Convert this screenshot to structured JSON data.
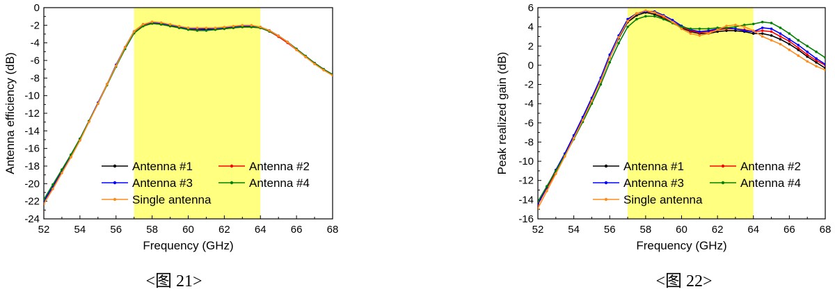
{
  "chart_data": [
    {
      "type": "line",
      "caption": "<图 21>",
      "xlabel": "Frequency (GHz)",
      "ylabel": "Antenna efficiency (dB)",
      "xlim": [
        52,
        68
      ],
      "ylim": [
        -24,
        0
      ],
      "xticks": [
        52,
        54,
        56,
        58,
        60,
        62,
        64,
        66,
        68
      ],
      "yticks": [
        0,
        -2,
        -4,
        -6,
        -8,
        -10,
        -12,
        -14,
        -16,
        -18,
        -20,
        -22,
        -24
      ],
      "highlight_band": {
        "from": 57,
        "to": 64,
        "color": "#ffff80"
      },
      "grid": false,
      "legend_position": "bottom-center",
      "series": [
        {
          "name": "Antenna #1",
          "color": "#000000",
          "x": [
            52,
            52.5,
            53,
            53.5,
            54,
            54.5,
            55,
            55.5,
            56,
            56.5,
            57,
            57.5,
            58,
            58.5,
            59,
            59.5,
            60,
            60.5,
            61,
            61.5,
            62,
            62.5,
            63,
            63.5,
            64,
            64.5,
            65,
            65.5,
            66,
            66.5,
            67,
            67.5,
            68
          ],
          "y": [
            -22.0,
            -20.4,
            -18.6,
            -16.9,
            -15.0,
            -12.9,
            -10.9,
            -8.7,
            -6.6,
            -4.5,
            -2.7,
            -1.9,
            -1.7,
            -1.8,
            -2.0,
            -2.2,
            -2.3,
            -2.4,
            -2.4,
            -2.4,
            -2.3,
            -2.2,
            -2.1,
            -2.1,
            -2.2,
            -2.6,
            -3.2,
            -3.9,
            -4.7,
            -5.5,
            -6.3,
            -7.0,
            -7.6
          ]
        },
        {
          "name": "Antenna #2",
          "color": "#ff0000",
          "x": [
            52,
            52.5,
            53,
            53.5,
            54,
            54.5,
            55,
            55.5,
            56,
            56.5,
            57,
            57.5,
            58,
            58.5,
            59,
            59.5,
            60,
            60.5,
            61,
            61.5,
            62,
            62.5,
            63,
            63.5,
            64,
            64.5,
            65,
            65.5,
            66,
            66.5,
            67,
            67.5,
            68
          ],
          "y": [
            -22.0,
            -20.4,
            -18.6,
            -16.9,
            -15.0,
            -12.9,
            -10.9,
            -8.7,
            -6.6,
            -4.5,
            -2.8,
            -2.0,
            -1.8,
            -1.9,
            -2.1,
            -2.3,
            -2.4,
            -2.5,
            -2.5,
            -2.5,
            -2.4,
            -2.3,
            -2.2,
            -2.2,
            -2.3,
            -2.7,
            -3.3,
            -4.0,
            -4.8,
            -5.6,
            -6.3,
            -7.0,
            -7.6
          ]
        },
        {
          "name": "Antenna #3",
          "color": "#0000ff",
          "x": [
            52,
            52.5,
            53,
            53.5,
            54,
            54.5,
            55,
            55.5,
            56,
            56.5,
            57,
            57.5,
            58,
            58.5,
            59,
            59.5,
            60,
            60.5,
            61,
            61.5,
            62,
            62.5,
            63,
            63.5,
            64,
            64.5,
            65,
            65.5,
            66,
            66.5,
            67,
            67.5,
            68
          ],
          "y": [
            -22.0,
            -20.3,
            -18.5,
            -16.8,
            -14.9,
            -12.9,
            -10.8,
            -8.7,
            -6.5,
            -4.5,
            -2.7,
            -1.9,
            -1.7,
            -1.8,
            -2.0,
            -2.2,
            -2.4,
            -2.4,
            -2.5,
            -2.4,
            -2.3,
            -2.2,
            -2.1,
            -2.1,
            -2.3,
            -2.6,
            -3.2,
            -3.9,
            -4.7,
            -5.5,
            -6.3,
            -7.0,
            -7.6
          ]
        },
        {
          "name": "Antenna #4",
          "color": "#008000",
          "x": [
            52,
            52.5,
            53,
            53.5,
            54,
            54.5,
            55,
            55.5,
            56,
            56.5,
            57,
            57.5,
            58,
            58.5,
            59,
            59.5,
            60,
            60.5,
            61,
            61.5,
            62,
            62.5,
            63,
            63.5,
            64,
            64.5,
            65,
            65.5,
            66,
            66.5,
            67,
            67.5,
            68
          ],
          "y": [
            -21.8,
            -20.1,
            -18.4,
            -16.7,
            -14.9,
            -12.9,
            -10.9,
            -8.8,
            -6.7,
            -4.7,
            -2.9,
            -2.1,
            -1.8,
            -1.9,
            -2.1,
            -2.3,
            -2.5,
            -2.6,
            -2.6,
            -2.5,
            -2.4,
            -2.3,
            -2.2,
            -2.2,
            -2.3,
            -2.7,
            -3.2,
            -3.9,
            -4.7,
            -5.5,
            -6.3,
            -7.0,
            -7.6
          ]
        },
        {
          "name": "Single antenna",
          "color": "#ff8c1a",
          "x": [
            52,
            52.5,
            53,
            53.5,
            54,
            54.5,
            55,
            55.5,
            56,
            56.5,
            57,
            57.5,
            58,
            58.5,
            59,
            59.5,
            60,
            60.5,
            61,
            61.5,
            62,
            62.5,
            63,
            63.5,
            64,
            64.5,
            65,
            65.5,
            66,
            66.5,
            67,
            67.5,
            68
          ],
          "y": [
            -22.3,
            -20.6,
            -18.8,
            -17.0,
            -15.1,
            -13.0,
            -10.9,
            -8.7,
            -6.6,
            -4.5,
            -2.7,
            -1.9,
            -1.6,
            -1.7,
            -1.9,
            -2.1,
            -2.3,
            -2.3,
            -2.3,
            -2.3,
            -2.2,
            -2.1,
            -2.0,
            -2.0,
            -2.2,
            -2.6,
            -3.2,
            -3.9,
            -4.8,
            -5.6,
            -6.4,
            -7.1,
            -7.7
          ]
        }
      ]
    },
    {
      "type": "line",
      "caption": "<图 22>",
      "xlabel": "Frequency (GHz)",
      "ylabel": "Peak realized gain (dB)",
      "xlim": [
        52,
        68
      ],
      "ylim": [
        -16,
        6
      ],
      "xticks": [
        52,
        54,
        56,
        58,
        60,
        62,
        64,
        66,
        68
      ],
      "yticks": [
        6,
        4,
        2,
        0,
        -2,
        -4,
        -6,
        -8,
        -10,
        -12,
        -14,
        -16
      ],
      "highlight_band": {
        "from": 57,
        "to": 64,
        "color": "#ffff80"
      },
      "grid": false,
      "legend_position": "bottom-center",
      "series": [
        {
          "name": "Antenna #1",
          "color": "#000000",
          "x": [
            52,
            52.5,
            53,
            53.5,
            54,
            54.5,
            55,
            55.5,
            56,
            56.5,
            57,
            57.5,
            58,
            58.5,
            59,
            59.5,
            60,
            60.5,
            61,
            61.5,
            62,
            62.5,
            63,
            63.5,
            64,
            64.5,
            65,
            65.5,
            66,
            66.5,
            67,
            67.5,
            68
          ],
          "y": [
            -14.3,
            -12.7,
            -11.0,
            -9.3,
            -7.5,
            -5.6,
            -3.6,
            -1.6,
            0.8,
            2.8,
            4.5,
            5.2,
            5.5,
            5.3,
            4.9,
            4.4,
            3.9,
            3.5,
            3.3,
            3.3,
            3.5,
            3.6,
            3.6,
            3.5,
            3.3,
            3.3,
            3.1,
            2.7,
            2.2,
            1.6,
            0.9,
            0.3,
            -0.3
          ]
        },
        {
          "name": "Antenna #2",
          "color": "#ff0000",
          "x": [
            52,
            52.5,
            53,
            53.5,
            54,
            54.5,
            55,
            55.5,
            56,
            56.5,
            57,
            57.5,
            58,
            58.5,
            59,
            59.5,
            60,
            60.5,
            61,
            61.5,
            62,
            62.5,
            63,
            63.5,
            64,
            64.5,
            65,
            65.5,
            66,
            66.5,
            67,
            67.5,
            68
          ],
          "y": [
            -14.5,
            -12.8,
            -11.1,
            -9.3,
            -7.5,
            -5.6,
            -3.6,
            -1.6,
            0.8,
            2.9,
            4.6,
            5.4,
            5.6,
            5.5,
            5.0,
            4.5,
            4.0,
            3.6,
            3.4,
            3.5,
            3.7,
            3.8,
            3.8,
            3.7,
            3.5,
            3.6,
            3.5,
            3.0,
            2.5,
            1.8,
            1.1,
            0.5,
            0.0
          ]
        },
        {
          "name": "Antenna #3",
          "color": "#0000ff",
          "x": [
            52,
            52.5,
            53,
            53.5,
            54,
            54.5,
            55,
            55.5,
            56,
            56.5,
            57,
            57.5,
            58,
            58.5,
            59,
            59.5,
            60,
            60.5,
            61,
            61.5,
            62,
            62.5,
            63,
            63.5,
            64,
            64.5,
            65,
            65.5,
            66,
            66.5,
            67,
            67.5,
            68
          ],
          "y": [
            -14.4,
            -12.7,
            -10.9,
            -9.2,
            -7.3,
            -5.4,
            -3.4,
            -1.3,
            1.1,
            3.1,
            4.8,
            5.4,
            5.6,
            5.6,
            5.2,
            4.7,
            4.1,
            3.7,
            3.5,
            3.6,
            3.8,
            3.9,
            3.8,
            3.6,
            3.5,
            3.9,
            3.8,
            3.3,
            2.7,
            2.1,
            1.4,
            0.7,
            0.1
          ]
        },
        {
          "name": "Antenna #4",
          "color": "#008000",
          "x": [
            52,
            52.5,
            53,
            53.5,
            54,
            54.5,
            55,
            55.5,
            56,
            56.5,
            57,
            57.5,
            58,
            58.5,
            59,
            59.5,
            60,
            60.5,
            61,
            61.5,
            62,
            62.5,
            63,
            63.5,
            64,
            64.5,
            65,
            65.5,
            66,
            66.5,
            67,
            67.5,
            68
          ],
          "y": [
            -14.2,
            -12.6,
            -11.0,
            -9.4,
            -7.7,
            -5.9,
            -4.0,
            -2.0,
            0.3,
            2.3,
            4.0,
            4.8,
            5.1,
            5.1,
            4.8,
            4.4,
            4.0,
            3.8,
            3.8,
            3.8,
            3.9,
            3.9,
            4.0,
            4.2,
            4.3,
            4.5,
            4.4,
            3.9,
            3.3,
            2.6,
            2.0,
            1.4,
            0.8
          ]
        },
        {
          "name": "Single antenna",
          "color": "#ff8c1a",
          "x": [
            52,
            52.5,
            53,
            53.5,
            54,
            54.5,
            55,
            55.5,
            56,
            56.5,
            57,
            57.5,
            58,
            58.5,
            59,
            59.5,
            60,
            60.5,
            61,
            61.5,
            62,
            62.5,
            63,
            63.5,
            64,
            64.5,
            65,
            65.5,
            66,
            66.5,
            67,
            67.5,
            68
          ],
          "y": [
            -14.9,
            -13.1,
            -11.3,
            -9.5,
            -7.6,
            -5.7,
            -3.7,
            -1.6,
            0.8,
            2.9,
            4.6,
            5.4,
            5.7,
            5.5,
            5.1,
            4.5,
            3.8,
            3.3,
            3.1,
            3.3,
            3.7,
            4.1,
            4.2,
            4.0,
            3.6,
            3.0,
            2.6,
            2.2,
            1.6,
            1.0,
            0.4,
            -0.1,
            -0.5
          ]
        }
      ]
    }
  ]
}
